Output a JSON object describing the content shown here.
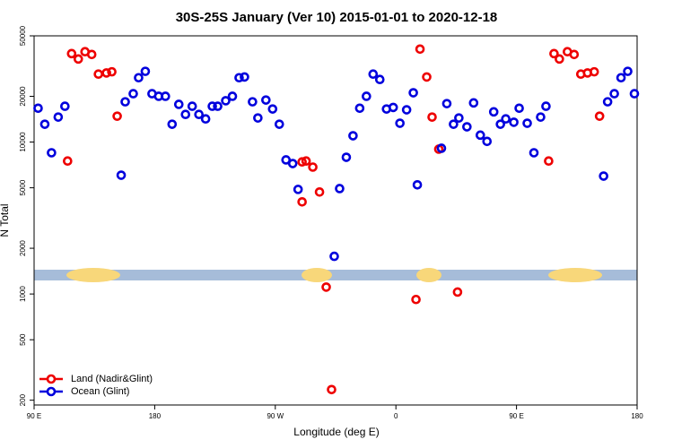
{
  "chart_data": {
    "type": "scatter",
    "title": "30S-25S January (Ver 10)   2015-01-01 to 2020-12-18",
    "x_label": "Longitude (deg E)",
    "y_label": "N Total",
    "log_y": true,
    "legend": "bottom-left",
    "xlim": [
      90,
      540
    ],
    "xticks": [
      {
        "value": 90,
        "label": "90 E"
      },
      {
        "value": 180,
        "label": "180"
      },
      {
        "value": 270,
        "label": "90 W"
      },
      {
        "value": 360,
        "label": "0"
      },
      {
        "value": 450,
        "label": "90 E"
      },
      {
        "value": 540,
        "label": "180"
      }
    ],
    "ylim": [
      186,
      50000
    ],
    "yticks": [
      200,
      500,
      1000,
      2000,
      5000,
      10000,
      20000,
      50000
    ],
    "series": [
      {
        "name": "Land (Nadir&Glint)",
        "color": "#ee0000",
        "x": [
          115,
          118,
          123,
          128,
          133,
          138,
          144,
          148,
          152,
          290,
          293,
          298,
          290,
          303,
          308,
          312,
          375,
          378,
          383,
          387,
          392,
          406,
          474,
          478,
          482,
          488,
          493,
          498,
          503,
          508,
          512
        ],
        "values": [
          7500,
          38200,
          35200,
          39300,
          37700,
          28000,
          28500,
          29000,
          14800,
          7400,
          7500,
          6840,
          4040,
          4690,
          1110,
          235,
          920,
          40900,
          26800,
          14600,
          8980,
          1030,
          7500,
          38200,
          35200,
          39300,
          37700,
          28000,
          28500,
          29000,
          14800
        ]
      },
      {
        "name": "Ocean (Glint)",
        "color": "#0000dd",
        "x": [
          93,
          98,
          103,
          108,
          113,
          155,
          158,
          164,
          168,
          173,
          178,
          183,
          188,
          193,
          198,
          203,
          208,
          213,
          218,
          223,
          227,
          233,
          238,
          243,
          247,
          253,
          257,
          263,
          268,
          273,
          278,
          283,
          287,
          314,
          318,
          323,
          328,
          333,
          338,
          343,
          348,
          353,
          358,
          363,
          368,
          373,
          376,
          394,
          398,
          403,
          407,
          413,
          418,
          423,
          428,
          433,
          438,
          442,
          448,
          452,
          458,
          463,
          468,
          472,
          515,
          518,
          523,
          528,
          533,
          538
        ],
        "values": [
          16700,
          13100,
          8500,
          14600,
          17200,
          6050,
          18400,
          20800,
          26500,
          29200,
          20800,
          20000,
          20000,
          13100,
          17700,
          15200,
          17200,
          15200,
          14200,
          17200,
          17200,
          18700,
          20000,
          26500,
          26800,
          18400,
          14400,
          18900,
          16500,
          13100,
          7630,
          7220,
          4880,
          1770,
          4940,
          7940,
          11000,
          16700,
          20000,
          28000,
          25800,
          16500,
          16900,
          13300,
          16300,
          21100,
          5230,
          9100,
          17900,
          13100,
          14400,
          12600,
          18100,
          11100,
          10100,
          15800,
          13100,
          14200,
          13500,
          16700,
          13300,
          8500,
          14600,
          17200,
          5970,
          18400,
          20800,
          26500,
          29200,
          20800
        ]
      }
    ]
  }
}
